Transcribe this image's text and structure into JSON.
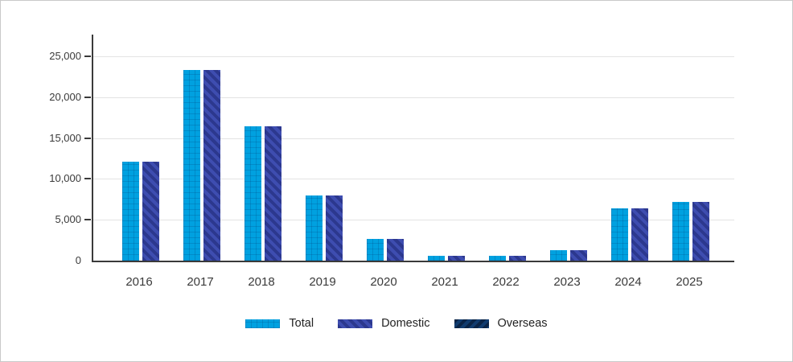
{
  "chart_data": {
    "type": "bar",
    "title": "",
    "xlabel": "",
    "ylabel": "",
    "categories": [
      "2016",
      "2017",
      "2018",
      "2019",
      "2020",
      "2021",
      "2022",
      "2023",
      "2024",
      "2025"
    ],
    "series": [
      {
        "name": "Total",
        "pattern": "grid-hatch",
        "color": "#00A1E0",
        "values": [
          12100,
          23300,
          16400,
          8000,
          2700,
          550,
          600,
          1300,
          6400,
          7200
        ]
      },
      {
        "name": "Domestic",
        "pattern": "diagonal-down-stripes",
        "color": "#3E4DB0",
        "values": [
          12100,
          23300,
          16400,
          8000,
          2700,
          550,
          600,
          1300,
          6400,
          7200
        ]
      },
      {
        "name": "Overseas",
        "pattern": "diagonal-up-stripes",
        "color": "#103B6E",
        "values": [
          0,
          0,
          0,
          0,
          0,
          0,
          0,
          0,
          0,
          0
        ]
      }
    ],
    "yticks": [
      {
        "value": 0,
        "label": "0"
      },
      {
        "value": 5000,
        "label": "5,000"
      },
      {
        "value": 10000,
        "label": "10,000"
      },
      {
        "value": 15000,
        "label": "15,000"
      },
      {
        "value": 20000,
        "label": "20,000"
      },
      {
        "value": 25000,
        "label": "25,000"
      }
    ],
    "ylim": [
      0,
      27650
    ],
    "grid": true,
    "legend_position": "bottom",
    "legend_labels": [
      "Total",
      "Domestic",
      "Overseas"
    ]
  },
  "colors": {
    "axis": "#3a3a3a",
    "gridline": "#e3e3e3",
    "tick_text": "#3a3a3a",
    "legend_text": "#222222",
    "background": "#ffffff",
    "frame_border": "#c9c9c9"
  }
}
